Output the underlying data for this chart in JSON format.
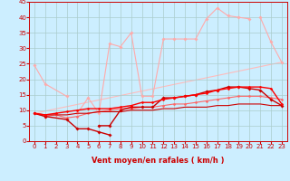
{
  "xlabel": "Vent moyen/en rafales ( km/h )",
  "xlim": [
    -0.5,
    23.5
  ],
  "ylim": [
    0,
    45
  ],
  "yticks": [
    0,
    5,
    10,
    15,
    20,
    25,
    30,
    35,
    40,
    45
  ],
  "xticks": [
    0,
    1,
    2,
    3,
    4,
    5,
    6,
    7,
    8,
    9,
    10,
    11,
    12,
    13,
    14,
    15,
    16,
    17,
    18,
    19,
    20,
    21,
    22,
    23
  ],
  "bg_color": "#cceeff",
  "grid_color": "#aacccc",
  "series": [
    {
      "x": [
        0,
        1,
        3
      ],
      "y": [
        24.5,
        18.5,
        14.5
      ],
      "color": "#ffaaaa",
      "marker": "D",
      "markersize": 1.8,
      "linewidth": 0.8,
      "zorder": 2
    },
    {
      "x": [
        4,
        5,
        6,
        7,
        8,
        9,
        10,
        11,
        12,
        13,
        14,
        15,
        16,
        17,
        18,
        19,
        20
      ],
      "y": [
        9.0,
        14.0,
        9.0,
        31.5,
        30.5,
        35.0,
        14.5,
        14.5,
        33.0,
        33.0,
        33.0,
        33.0,
        39.5,
        43.0,
        40.5,
        40.0,
        39.5
      ],
      "color": "#ffaaaa",
      "marker": "D",
      "markersize": 1.8,
      "linewidth": 0.8,
      "zorder": 2
    },
    {
      "x": [
        21,
        22,
        23
      ],
      "y": [
        40.0,
        32.0,
        25.5
      ],
      "color": "#ffaaaa",
      "marker": "D",
      "markersize": 1.8,
      "linewidth": 0.8,
      "zorder": 2
    },
    {
      "x": [
        0,
        23
      ],
      "y": [
        9.0,
        25.5
      ],
      "color": "#ffbbbb",
      "marker": null,
      "markersize": 0,
      "linewidth": 0.8,
      "zorder": 1
    },
    {
      "x": [
        0,
        1,
        3,
        4,
        5,
        6,
        7
      ],
      "y": [
        9.0,
        8.0,
        7.0,
        4.0,
        4.0,
        3.0,
        2.0
      ],
      "color": "#cc0000",
      "marker": "D",
      "markersize": 1.8,
      "linewidth": 1.0,
      "zorder": 3
    },
    {
      "x": [
        6,
        7,
        8,
        9,
        10,
        11,
        12,
        13,
        14,
        15,
        16,
        17,
        18,
        19,
        20,
        21,
        22,
        23
      ],
      "y": [
        5.0,
        5.0,
        10.0,
        11.0,
        11.0,
        11.0,
        14.0,
        14.0,
        14.5,
        15.0,
        16.0,
        16.5,
        17.5,
        17.5,
        17.0,
        16.5,
        13.5,
        11.5
      ],
      "color": "#cc0000",
      "marker": "D",
      "markersize": 1.8,
      "linewidth": 1.0,
      "zorder": 3
    },
    {
      "x": [
        0,
        1,
        2,
        3,
        4,
        5,
        6,
        7,
        8,
        9,
        10,
        11,
        12,
        13,
        14,
        15,
        16,
        17,
        18,
        19,
        20,
        21,
        22,
        23
      ],
      "y": [
        9.0,
        8.0,
        8.5,
        7.5,
        8.0,
        9.0,
        9.5,
        10.0,
        10.5,
        10.5,
        11.0,
        11.0,
        11.5,
        12.0,
        12.0,
        12.5,
        13.0,
        13.5,
        14.0,
        14.5,
        14.5,
        14.5,
        14.0,
        13.5
      ],
      "color": "#ff6666",
      "marker": "D",
      "markersize": 1.5,
      "linewidth": 0.8,
      "zorder": 2
    },
    {
      "x": [
        0,
        1,
        2,
        3,
        4,
        5,
        6,
        7,
        8,
        9,
        10,
        11,
        12,
        13,
        14,
        15,
        16,
        17,
        18,
        19,
        20,
        21,
        22,
        23
      ],
      "y": [
        9.0,
        8.5,
        9.0,
        9.5,
        10.0,
        10.5,
        10.5,
        10.5,
        11.0,
        11.5,
        12.5,
        12.5,
        13.5,
        14.0,
        14.5,
        15.0,
        15.5,
        16.5,
        17.0,
        17.5,
        17.5,
        17.5,
        17.0,
        12.0
      ],
      "color": "#ff0000",
      "marker": "D",
      "markersize": 1.5,
      "linewidth": 1.0,
      "zorder": 3
    },
    {
      "x": [
        0,
        1,
        2,
        3,
        4,
        5,
        6,
        7,
        8,
        9,
        10,
        11,
        12,
        13,
        14,
        15,
        16,
        17,
        18,
        19,
        20,
        21,
        22,
        23
      ],
      "y": [
        9.0,
        8.5,
        8.5,
        8.5,
        9.0,
        9.0,
        9.5,
        9.5,
        9.5,
        10.0,
        10.0,
        10.0,
        10.5,
        10.5,
        11.0,
        11.0,
        11.0,
        11.5,
        11.5,
        12.0,
        12.0,
        12.0,
        11.5,
        11.5
      ],
      "color": "#cc0000",
      "marker": null,
      "markersize": 0,
      "linewidth": 0.8,
      "zorder": 2
    }
  ],
  "arrow_color": "#cc0000",
  "label_fontsize": 6,
  "tick_fontsize": 5
}
